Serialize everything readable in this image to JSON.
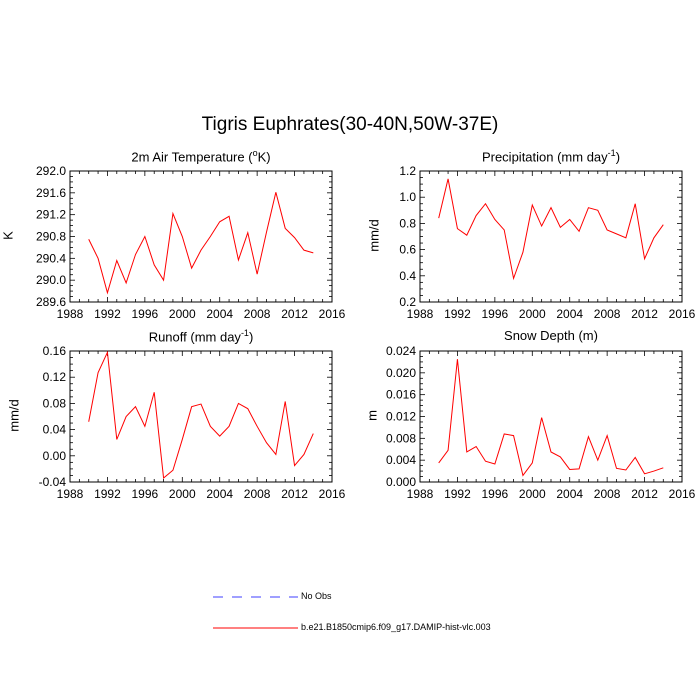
{
  "title": "Tigris Euphrates(30-40N,50W-37E)",
  "legend": [
    {
      "label": "No Obs",
      "color": "#0000ff",
      "style": "dashed"
    },
    {
      "label": "b.e21.B1850cmip6.f09_g17.DAMIP-hist-vlc.003",
      "color": "#ff0000",
      "style": "solid"
    }
  ],
  "chart_data": [
    {
      "type": "line",
      "title": "2m Air Temperature (",
      "title_sup": "o",
      "title_tail": "K)",
      "ylabel": "K",
      "xlim": [
        1988,
        2016
      ],
      "ylim": [
        289.6,
        292.0
      ],
      "xticks": [
        "1988",
        "1992",
        "1996",
        "2000",
        "2004",
        "2008",
        "2012",
        "2016"
      ],
      "yticks": [
        "289.6",
        "290.0",
        "290.4",
        "290.8",
        "291.2",
        "291.6",
        "292.0"
      ],
      "x": [
        1990,
        1991,
        1992,
        1993,
        1994,
        1995,
        1996,
        1997,
        1998,
        1999,
        2000,
        2001,
        2002,
        2003,
        2004,
        2005,
        2006,
        2007,
        2008,
        2009,
        2010,
        2011,
        2012,
        2013,
        2014
      ],
      "series": [
        {
          "color": "#ff0000",
          "values": [
            290.75,
            290.4,
            289.77,
            290.36,
            289.95,
            290.47,
            290.8,
            290.28,
            290.0,
            291.22,
            290.8,
            290.22,
            290.55,
            290.8,
            291.07,
            291.17,
            290.37,
            290.87,
            290.11,
            290.88,
            291.61,
            290.95,
            290.78,
            290.55,
            290.5
          ]
        }
      ]
    },
    {
      "type": "line",
      "title": "Precipitation (mm day",
      "title_sup": "-1",
      "title_tail": ")",
      "ylabel": "mm/d",
      "xlim": [
        1988,
        2016
      ],
      "ylim": [
        0.2,
        1.2
      ],
      "xticks": [
        "1988",
        "1992",
        "1996",
        "2000",
        "2004",
        "2008",
        "2012",
        "2016"
      ],
      "yticks": [
        "0.2",
        "0.4",
        "0.6",
        "0.8",
        "1.0",
        "1.2"
      ],
      "x": [
        1990,
        1991,
        1992,
        1993,
        1994,
        1995,
        1996,
        1997,
        1998,
        1999,
        2000,
        2001,
        2002,
        2003,
        2004,
        2005,
        2006,
        2007,
        2008,
        2009,
        2010,
        2011,
        2012,
        2013,
        2014
      ],
      "series": [
        {
          "color": "#ff0000",
          "values": [
            0.84,
            1.14,
            0.76,
            0.71,
            0.86,
            0.95,
            0.83,
            0.75,
            0.38,
            0.58,
            0.94,
            0.78,
            0.92,
            0.77,
            0.83,
            0.74,
            0.92,
            0.9,
            0.75,
            0.72,
            0.69,
            0.95,
            0.53,
            0.69,
            0.79
          ]
        }
      ]
    },
    {
      "type": "line",
      "title": "Runoff (mm day",
      "title_sup": "-1",
      "title_tail": ")",
      "ylabel": "mm/d",
      "xlim": [
        1988,
        2016
      ],
      "ylim": [
        -0.04,
        0.16
      ],
      "xticks": [
        "1988",
        "1992",
        "1996",
        "2000",
        "2004",
        "2008",
        "2012",
        "2016"
      ],
      "yticks": [
        "-0.04",
        "0.00",
        "0.04",
        "0.08",
        "0.12",
        "0.16"
      ],
      "x": [
        1990,
        1991,
        1992,
        1993,
        1994,
        1995,
        1996,
        1997,
        1998,
        1999,
        2000,
        2001,
        2002,
        2003,
        2004,
        2005,
        2006,
        2007,
        2008,
        2009,
        2010,
        2011,
        2012,
        2013,
        2014
      ],
      "series": [
        {
          "color": "#ff0000",
          "values": [
            0.052,
            0.127,
            0.158,
            0.025,
            0.06,
            0.075,
            0.045,
            0.097,
            -0.034,
            -0.022,
            0.025,
            0.075,
            0.079,
            0.045,
            0.03,
            0.045,
            0.08,
            0.072,
            0.045,
            0.02,
            0.002,
            0.083,
            -0.015,
            0.002,
            0.034
          ]
        }
      ]
    },
    {
      "type": "line",
      "title": "Snow Depth (m)",
      "title_sup": "",
      "title_tail": "",
      "ylabel": "m",
      "xlim": [
        1988,
        2016
      ],
      "ylim": [
        0.0,
        0.024
      ],
      "xticks": [
        "1988",
        "1992",
        "1996",
        "2000",
        "2004",
        "2008",
        "2012",
        "2016"
      ],
      "yticks": [
        "0.000",
        "0.004",
        "0.008",
        "0.012",
        "0.016",
        "0.020",
        "0.024"
      ],
      "x": [
        1990,
        1991,
        1992,
        1993,
        1994,
        1995,
        1996,
        1997,
        1998,
        1999,
        2000,
        2001,
        2002,
        2003,
        2004,
        2005,
        2006,
        2007,
        2008,
        2009,
        2010,
        2011,
        2012,
        2013,
        2014
      ],
      "series": [
        {
          "color": "#ff0000",
          "values": [
            0.0035,
            0.0058,
            0.0225,
            0.0055,
            0.0065,
            0.0038,
            0.0033,
            0.0088,
            0.0085,
            0.0012,
            0.0035,
            0.0118,
            0.0055,
            0.0046,
            0.0023,
            0.0024,
            0.0083,
            0.004,
            0.0085,
            0.0025,
            0.0022,
            0.0045,
            0.0015,
            0.002,
            0.0026
          ]
        }
      ]
    }
  ]
}
